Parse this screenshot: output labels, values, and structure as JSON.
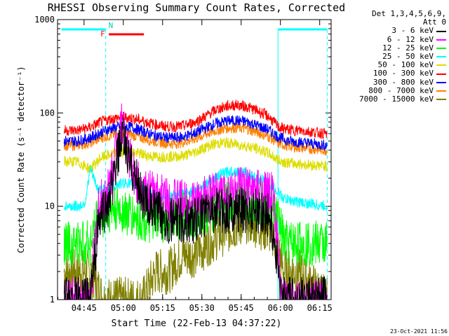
{
  "chart_data": {
    "type": "line",
    "title": "RHESSI Observing Summary Count Rates, Corrected",
    "xlabel": "Start Time (22-Feb-13 04:37:22)",
    "ylabel": "Corrected Count Rate (s⁻¹ detector⁻¹)",
    "yscale": "log",
    "ylim": [
      1,
      1000
    ],
    "xlim_minutes": [
      -2.5,
      102
    ],
    "x_ticks": [
      "04:45",
      "05:00",
      "05:15",
      "05:30",
      "05:45",
      "06:00",
      "06:15"
    ],
    "y_ticks": [
      "1",
      "10",
      "100",
      "1000"
    ],
    "legend_header": [
      "Det 1,3,4,5,6,9,",
      "Att 0"
    ],
    "flags": {
      "night_intervals": [
        [
          -1.0,
          15.9
        ],
        [
          81.7,
          100.5
        ]
      ],
      "saa_label": "N",
      "flare_label": "F",
      "flare_interval": [
        17.1,
        30.5
      ]
    },
    "series": [
      {
        "name": "3 - 6 keV",
        "color": "#000000",
        "values": [
          [
            0,
            1
          ],
          [
            10,
            1
          ],
          [
            13,
            6
          ],
          [
            15,
            9
          ],
          [
            17,
            10
          ],
          [
            19,
            20
          ],
          [
            21,
            40
          ],
          [
            22.5,
            53
          ],
          [
            25,
            30
          ],
          [
            28,
            18
          ],
          [
            31,
            11
          ],
          [
            34,
            9
          ],
          [
            37,
            8
          ],
          [
            40,
            7
          ],
          [
            45,
            7
          ],
          [
            50,
            7
          ],
          [
            53,
            8
          ],
          [
            56,
            9
          ],
          [
            60,
            9
          ],
          [
            65,
            9
          ],
          [
            70,
            9
          ],
          [
            75,
            9
          ],
          [
            78,
            8
          ],
          [
            80,
            5
          ],
          [
            82,
            2
          ],
          [
            83,
            1
          ]
        ]
      },
      {
        "name": "6 - 12 keV",
        "color": "#ff00ff",
        "values": [
          [
            0,
            1
          ],
          [
            10,
            1
          ],
          [
            13,
            10
          ],
          [
            15,
            12
          ],
          [
            17,
            15
          ],
          [
            19,
            30
          ],
          [
            21,
            65
          ],
          [
            22,
            85
          ],
          [
            24,
            45
          ],
          [
            27,
            20
          ],
          [
            30,
            15
          ],
          [
            35,
            13
          ],
          [
            40,
            12
          ],
          [
            45,
            11
          ],
          [
            50,
            11
          ],
          [
            53,
            12
          ],
          [
            58,
            13
          ],
          [
            62,
            14
          ],
          [
            66,
            15
          ],
          [
            70,
            15
          ],
          [
            75,
            14
          ],
          [
            80,
            13
          ],
          [
            83,
            1
          ]
        ]
      },
      {
        "name": "12 - 25 keV",
        "color": "#00ff00",
        "values": [
          [
            0,
            4
          ],
          [
            6,
            4
          ],
          [
            10,
            4
          ],
          [
            13,
            8
          ],
          [
            15,
            8
          ],
          [
            18,
            9
          ],
          [
            22,
            9
          ],
          [
            25,
            8
          ],
          [
            30,
            7
          ],
          [
            35,
            7
          ],
          [
            40,
            7
          ],
          [
            45,
            8
          ],
          [
            50,
            8
          ],
          [
            55,
            9
          ],
          [
            60,
            10
          ],
          [
            65,
            11
          ],
          [
            70,
            11
          ],
          [
            75,
            11
          ],
          [
            80,
            9
          ],
          [
            82,
            7
          ],
          [
            84,
            4
          ],
          [
            100,
            4
          ]
        ]
      },
      {
        "name": "25 - 50 keV",
        "color": "#00ffff",
        "values": [
          [
            0,
            10
          ],
          [
            6,
            10
          ],
          [
            8,
            11
          ],
          [
            10,
            25
          ],
          [
            13,
            15
          ],
          [
            16,
            15
          ],
          [
            20,
            17
          ],
          [
            24,
            18
          ],
          [
            28,
            16
          ],
          [
            32,
            14
          ],
          [
            36,
            13
          ],
          [
            40,
            13
          ],
          [
            44,
            13
          ],
          [
            48,
            14
          ],
          [
            52,
            16
          ],
          [
            56,
            19
          ],
          [
            60,
            22
          ],
          [
            64,
            24
          ],
          [
            68,
            23
          ],
          [
            72,
            21
          ],
          [
            76,
            19
          ],
          [
            80,
            16
          ],
          [
            84,
            12
          ],
          [
            90,
            11
          ],
          [
            100,
            10
          ]
        ]
      },
      {
        "name": "50 - 100 keV",
        "color": "#dddd00",
        "values": [
          [
            0,
            30
          ],
          [
            5,
            30
          ],
          [
            10,
            25
          ],
          [
            14,
            33
          ],
          [
            18,
            36
          ],
          [
            22,
            38
          ],
          [
            26,
            38
          ],
          [
            30,
            36
          ],
          [
            34,
            34
          ],
          [
            38,
            34
          ],
          [
            42,
            34
          ],
          [
            46,
            35
          ],
          [
            50,
            38
          ],
          [
            54,
            43
          ],
          [
            58,
            47
          ],
          [
            62,
            48
          ],
          [
            66,
            46
          ],
          [
            70,
            44
          ],
          [
            74,
            41
          ],
          [
            78,
            37
          ],
          [
            82,
            31
          ],
          [
            86,
            29
          ],
          [
            92,
            28
          ],
          [
            100,
            27
          ]
        ]
      },
      {
        "name": "100 - 300 keV",
        "color": "#ff0000",
        "values": [
          [
            0,
            65
          ],
          [
            5,
            65
          ],
          [
            10,
            70
          ],
          [
            14,
            80
          ],
          [
            18,
            86
          ],
          [
            22,
            90
          ],
          [
            26,
            88
          ],
          [
            30,
            82
          ],
          [
            34,
            76
          ],
          [
            38,
            72
          ],
          [
            42,
            71
          ],
          [
            46,
            73
          ],
          [
            50,
            80
          ],
          [
            54,
            92
          ],
          [
            58,
            108
          ],
          [
            62,
            118
          ],
          [
            66,
            122
          ],
          [
            70,
            116
          ],
          [
            74,
            105
          ],
          [
            78,
            92
          ],
          [
            82,
            70
          ],
          [
            86,
            66
          ],
          [
            92,
            64
          ],
          [
            100,
            60
          ]
        ]
      },
      {
        "name": "300 - 800 keV",
        "color": "#0000ff",
        "values": [
          [
            0,
            50
          ],
          [
            5,
            50
          ],
          [
            10,
            54
          ],
          [
            14,
            62
          ],
          [
            18,
            68
          ],
          [
            22,
            72
          ],
          [
            26,
            70
          ],
          [
            30,
            64
          ],
          [
            34,
            58
          ],
          [
            38,
            55
          ],
          [
            42,
            54
          ],
          [
            46,
            56
          ],
          [
            50,
            61
          ],
          [
            54,
            69
          ],
          [
            58,
            77
          ],
          [
            62,
            82
          ],
          [
            66,
            83
          ],
          [
            70,
            80
          ],
          [
            74,
            73
          ],
          [
            78,
            66
          ],
          [
            82,
            55
          ],
          [
            86,
            50
          ],
          [
            92,
            48
          ],
          [
            100,
            45
          ]
        ]
      },
      {
        "name": "800 - 7000 keV",
        "color": "#ff8000",
        "values": [
          [
            0,
            45
          ],
          [
            5,
            45
          ],
          [
            10,
            48
          ],
          [
            14,
            54
          ],
          [
            18,
            58
          ],
          [
            22,
            60
          ],
          [
            26,
            58
          ],
          [
            30,
            54
          ],
          [
            34,
            50
          ],
          [
            38,
            48
          ],
          [
            42,
            47
          ],
          [
            46,
            49
          ],
          [
            50,
            53
          ],
          [
            54,
            59
          ],
          [
            58,
            65
          ],
          [
            62,
            69
          ],
          [
            66,
            70
          ],
          [
            70,
            67
          ],
          [
            74,
            62
          ],
          [
            78,
            56
          ],
          [
            82,
            47
          ],
          [
            86,
            44
          ],
          [
            92,
            42
          ],
          [
            100,
            40
          ]
        ]
      },
      {
        "name": "7000 - 15000 keV",
        "color": "#808000",
        "values": [
          [
            0,
            2
          ],
          [
            5,
            2
          ],
          [
            10,
            2
          ],
          [
            15,
            1
          ],
          [
            20,
            1
          ],
          [
            25,
            1
          ],
          [
            30,
            1
          ],
          [
            35,
            2
          ],
          [
            40,
            2
          ],
          [
            45,
            3
          ],
          [
            50,
            3
          ],
          [
            55,
            4
          ],
          [
            60,
            5
          ],
          [
            65,
            6
          ],
          [
            70,
            7
          ],
          [
            75,
            6
          ],
          [
            80,
            5
          ],
          [
            84,
            2
          ],
          [
            90,
            2
          ],
          [
            100,
            1
          ]
        ]
      }
    ]
  },
  "footer": {
    "date_stamp": "23-Oct-2021 11:56"
  }
}
